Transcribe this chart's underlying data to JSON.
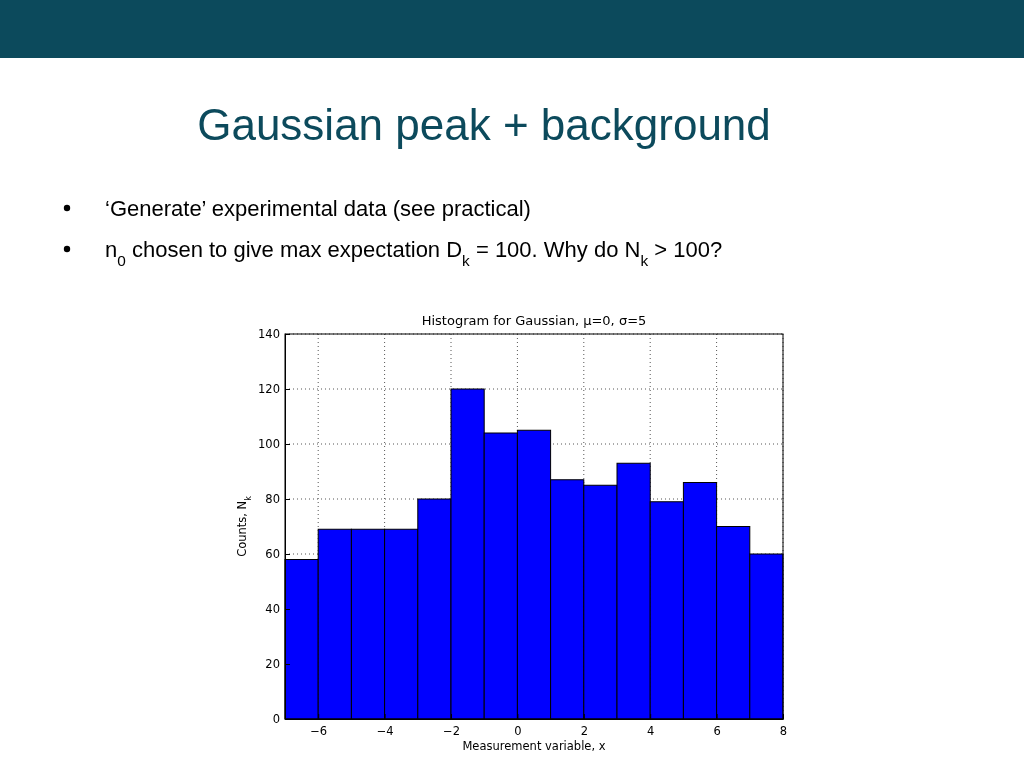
{
  "chart_data": {
    "type": "histogram",
    "title": "Gaussian peak + background",
    "subtitle": "Histogram for Gaussian,  μ=0, σ=5",
    "xlabel": "Measurement variable, x",
    "ylabel": "Counts, N$_{k}$",
    "annotations": [
      "‘Generate’ experimental data (see practical)",
      "n$_{0}$ chosen to give max expectation D$_{k}$ = 100. Why do N$_{k}$ > 100?"
    ],
    "bins": [
      -7,
      -6,
      -5,
      -4,
      -3,
      -2,
      -1,
      0,
      1,
      2,
      3,
      4,
      5,
      6,
      7,
      8
    ],
    "values": [
      58,
      69,
      69,
      69,
      80,
      120,
      104,
      105,
      87,
      85,
      93,
      79,
      86,
      70,
      60
    ],
    "color": "#0000ff",
    "xlim": [
      -7,
      8
    ],
    "xticks": [
      -6,
      -4,
      -2,
      0,
      2,
      4,
      6,
      8
    ],
    "ylim": [
      0,
      140
    ],
    "yticks": [
      0,
      20,
      40,
      60,
      80,
      100,
      120,
      140
    ],
    "grid": true
  }
}
